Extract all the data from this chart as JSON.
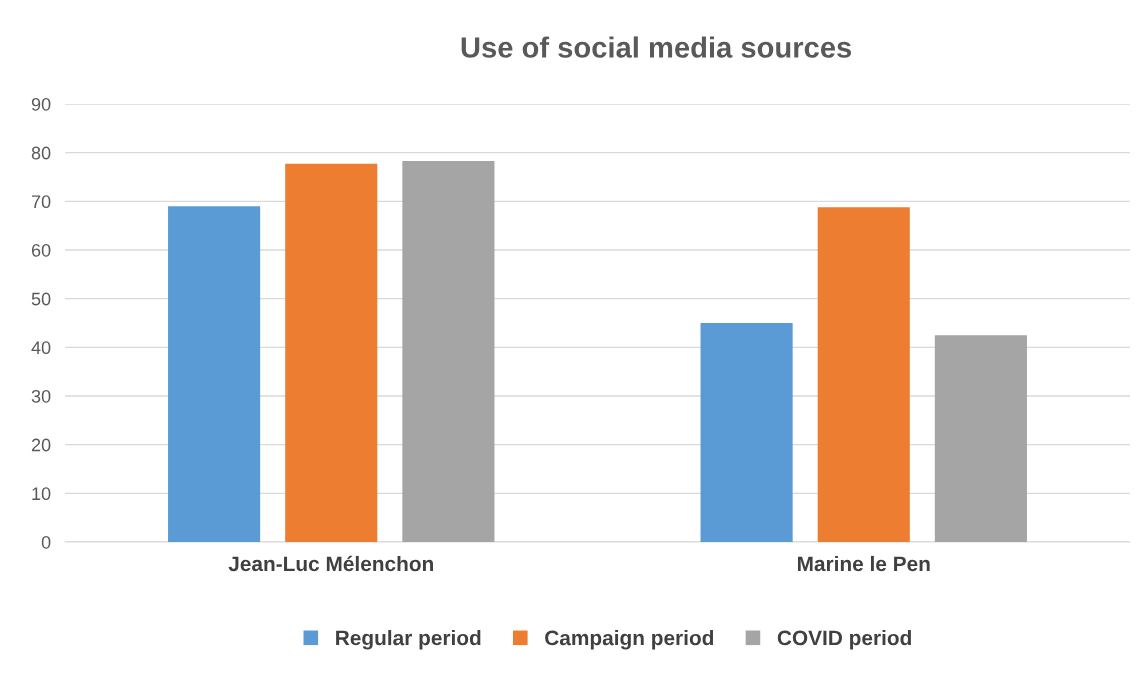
{
  "chart_data": {
    "type": "bar",
    "title": "Use of social media sources",
    "categories": [
      "Jean-Luc Mélenchon",
      "Marine le Pen"
    ],
    "series": [
      {
        "name": "Regular period",
        "color": "#5b9bd5",
        "values": [
          69.0,
          45.0
        ]
      },
      {
        "name": "Campaign period",
        "color": "#ed7d31",
        "values": [
          77.7,
          68.8
        ]
      },
      {
        "name": "COVID period",
        "color": "#a5a5a5",
        "values": [
          78.3,
          42.5
        ]
      }
    ],
    "ylim": [
      0,
      90
    ],
    "yticks": [
      0,
      10,
      20,
      30,
      40,
      50,
      60,
      70,
      80,
      90
    ],
    "grid": "y",
    "legend": "bottom"
  }
}
